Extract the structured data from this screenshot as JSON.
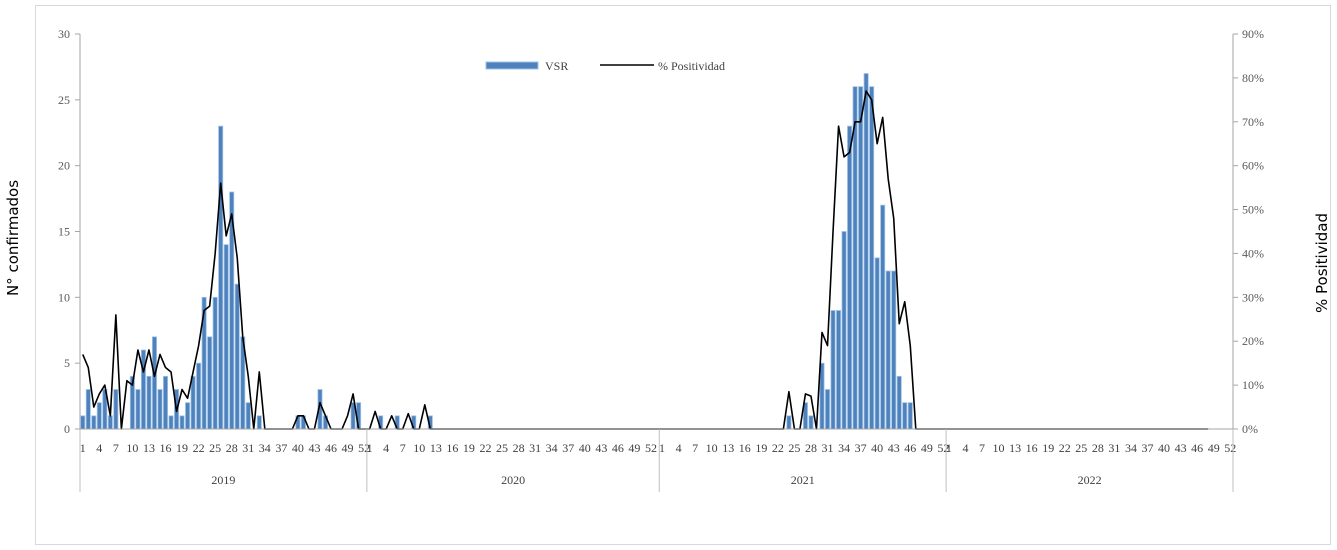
{
  "chart_data": {
    "type": "bar",
    "ylabel": "N° confirmados",
    "y2label": "% Positividad",
    "ylim": [
      0,
      30
    ],
    "y2lim": [
      0,
      0.9
    ],
    "yticks": [
      "0",
      "5",
      "10",
      "15",
      "20",
      "25",
      "30"
    ],
    "y2ticks": [
      "0%",
      "10%",
      "20%",
      "30%",
      "40%",
      "50%",
      "60%",
      "70%",
      "80%",
      "90%"
    ],
    "years": [
      {
        "label": "2019",
        "weeks": 52
      },
      {
        "label": "2020",
        "weeks": 53
      },
      {
        "label": "2021",
        "weeks": 52
      },
      {
        "label": "2022",
        "weeks": 52
      }
    ],
    "week_label_step": 3,
    "legend": {
      "position": "top-center"
    },
    "series": [
      {
        "name": "VSR",
        "kind": "bar",
        "axis": "left",
        "color": "#4f81bd",
        "values": [
          1,
          3,
          1,
          2,
          3,
          1,
          3,
          0,
          0,
          4,
          3,
          6,
          4,
          7,
          3,
          4,
          1,
          3,
          1,
          2,
          4,
          5,
          10,
          7,
          10,
          23,
          14,
          18,
          11,
          7,
          2,
          0,
          1,
          0,
          0,
          0,
          0,
          0,
          0,
          1,
          1,
          0,
          0,
          3,
          1,
          0,
          0,
          0,
          0,
          2,
          2,
          0,
          0,
          0,
          1,
          0,
          0,
          1,
          0,
          0,
          1,
          0,
          0,
          1,
          0,
          0,
          0,
          0,
          0,
          0,
          0,
          0,
          0,
          0,
          0,
          0,
          0,
          0,
          0,
          0,
          0,
          0,
          0,
          0,
          0,
          0,
          0,
          0,
          0,
          0,
          0,
          0,
          0,
          0,
          0,
          0,
          0,
          0,
          0,
          0,
          0,
          0,
          0,
          0,
          0,
          0,
          0,
          0,
          0,
          0,
          0,
          0,
          0,
          0,
          0,
          0,
          0,
          0,
          0,
          0,
          0,
          0,
          0,
          0,
          0,
          0,
          0,
          0,
          1,
          0,
          0,
          2,
          1,
          0,
          5,
          3,
          9,
          9,
          15,
          23,
          26,
          26,
          27,
          26,
          13,
          17,
          12,
          12,
          4,
          2,
          2,
          0,
          0,
          0,
          0,
          0,
          0,
          0,
          0,
          0,
          0,
          0,
          0,
          0,
          0,
          0,
          0,
          0,
          0,
          0,
          0,
          0,
          0,
          0,
          0,
          0,
          0,
          0,
          0,
          0,
          0,
          0,
          0,
          0,
          0,
          0,
          0,
          0,
          0,
          0,
          0,
          0,
          0,
          0,
          0,
          0,
          0,
          0,
          0,
          0,
          0,
          0,
          0,
          0,
          0
        ]
      },
      {
        "name": "% Positividad",
        "kind": "line",
        "axis": "right",
        "color": "#000000",
        "values": [
          0.17,
          0.14,
          0.05,
          0.08,
          0.1,
          0.03,
          0.26,
          0.0,
          0.11,
          0.1,
          0.18,
          0.13,
          0.18,
          0.12,
          0.17,
          0.14,
          0.13,
          0.04,
          0.09,
          0.07,
          0.13,
          0.19,
          0.27,
          0.28,
          0.4,
          0.56,
          0.44,
          0.49,
          0.39,
          0.21,
          0.12,
          0.0,
          0.13,
          0,
          0,
          0,
          0,
          0,
          0,
          0.03,
          0.03,
          0,
          0,
          0.06,
          0.03,
          0,
          0,
          0,
          0.03,
          0.08,
          0,
          0,
          0,
          0.04,
          0,
          0,
          0.03,
          0,
          0,
          0.035,
          0,
          0,
          0.055,
          0,
          0,
          0,
          0,
          0,
          0,
          0,
          0,
          0,
          0,
          0,
          0,
          0,
          0,
          0,
          0,
          0,
          0,
          0,
          0,
          0,
          0,
          0,
          0,
          0,
          0,
          0,
          0,
          0,
          0,
          0,
          0,
          0,
          0,
          0,
          0,
          0,
          0,
          0,
          0,
          0,
          0,
          0,
          0,
          0,
          0,
          0,
          0,
          0,
          0,
          0,
          0,
          0,
          0,
          0,
          0,
          0,
          0,
          0,
          0,
          0,
          0,
          0,
          0,
          0,
          0.085,
          0,
          0,
          0.08,
          0.075,
          0,
          0.22,
          0.19,
          0.45,
          0.69,
          0.62,
          0.63,
          0.7,
          0.7,
          0.77,
          0.75,
          0.65,
          0.71,
          0.57,
          0.48,
          0.24,
          0.29,
          0.19,
          0,
          0,
          0,
          0,
          0,
          0,
          0,
          0,
          0,
          0,
          0,
          0,
          0,
          0,
          0,
          0,
          0,
          0,
          0,
          0,
          0,
          0,
          0,
          0,
          0,
          0,
          0,
          0,
          0,
          0,
          0,
          0,
          0,
          0,
          0,
          0,
          0,
          0,
          0,
          0,
          0,
          0,
          0,
          0,
          0,
          0,
          0,
          0,
          0,
          0,
          0,
          0,
          0,
          0
        ]
      }
    ]
  }
}
